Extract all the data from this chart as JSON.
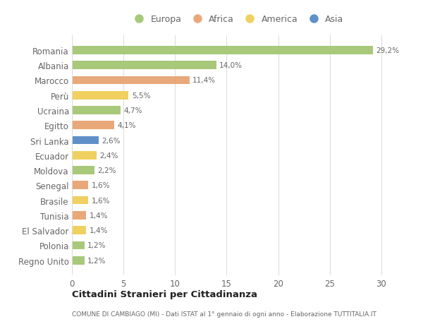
{
  "countries": [
    "Romania",
    "Albania",
    "Marocco",
    "Perù",
    "Ucraina",
    "Egitto",
    "Sri Lanka",
    "Ecuador",
    "Moldova",
    "Senegal",
    "Brasile",
    "Tunisia",
    "El Salvador",
    "Polonia",
    "Regno Unito"
  ],
  "values": [
    29.2,
    14.0,
    11.4,
    5.5,
    4.7,
    4.1,
    2.6,
    2.4,
    2.2,
    1.6,
    1.6,
    1.4,
    1.4,
    1.2,
    1.2
  ],
  "labels": [
    "29,2%",
    "14,0%",
    "11,4%",
    "5,5%",
    "4,7%",
    "4,1%",
    "2,6%",
    "2,4%",
    "2,2%",
    "1,6%",
    "1,6%",
    "1,4%",
    "1,4%",
    "1,2%",
    "1,2%"
  ],
  "continents": [
    "Europa",
    "Europa",
    "Africa",
    "America",
    "Europa",
    "Africa",
    "Asia",
    "America",
    "Europa",
    "Africa",
    "America",
    "Africa",
    "America",
    "Europa",
    "Europa"
  ],
  "colors": {
    "Europa": "#a8c87a",
    "Africa": "#e8a87a",
    "America": "#f0d060",
    "Asia": "#6090c8"
  },
  "legend_order": [
    "Europa",
    "Africa",
    "America",
    "Asia"
  ],
  "title": "Cittadini Stranieri per Cittadinanza",
  "subtitle": "COMUNE DI CAMBIAGO (MI) - Dati ISTAT al 1° gennaio di ogni anno - Elaborazione TUTTITALIA.IT",
  "xlim": [
    0,
    32
  ],
  "xticks": [
    0,
    5,
    10,
    15,
    20,
    25,
    30
  ],
  "background_color": "#ffffff",
  "grid_color": "#dddddd"
}
